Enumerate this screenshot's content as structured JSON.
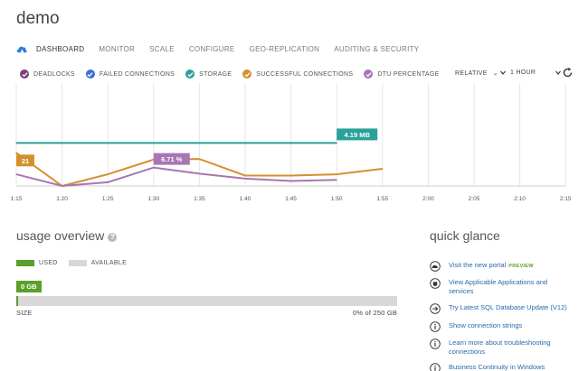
{
  "page": {
    "title": "demo"
  },
  "nav": {
    "items": [
      "DASHBOARD",
      "MONITOR",
      "SCALE",
      "CONFIGURE",
      "GEO-REPLICATION",
      "AUDITING & SECURITY"
    ],
    "active": "DASHBOARD"
  },
  "metrics": [
    {
      "label": "DEADLOCKS",
      "color": "#7d3c7c"
    },
    {
      "label": "FAILED CONNECTIONS",
      "color": "#3a6fd1"
    },
    {
      "label": "STORAGE",
      "color": "#2aa198"
    },
    {
      "label": "SUCCESSFUL CONNECTIONS",
      "color": "#d4902f"
    },
    {
      "label": "DTU PERCENTAGE",
      "color": "#a875b5"
    }
  ],
  "time_controls": {
    "mode": "RELATIVE",
    "range": "1 HOUR"
  },
  "chart_data": {
    "type": "line",
    "x": [
      "1:15",
      "1:20",
      "1:25",
      "1:30",
      "1:35",
      "1:40",
      "1:45",
      "1:50",
      "1:55",
      "2:00",
      "2:05",
      "2:10",
      "2:15"
    ],
    "ylim": [
      0,
      100
    ],
    "series": [
      {
        "name": "STORAGE",
        "color": "#2aa198",
        "values": [
          70,
          70,
          70,
          70,
          70,
          70,
          70,
          70,
          null,
          null,
          null,
          null,
          null
        ],
        "callout": "4.19 MB",
        "callout_index": 7
      },
      {
        "name": "SUCCESSFUL CONNECTIONS",
        "color": "#d4902f",
        "values": [
          54,
          0,
          19,
          43,
          44,
          17,
          17,
          19,
          28,
          null,
          null,
          null,
          null
        ],
        "callout": "21",
        "callout_index": 0
      },
      {
        "name": "DTU PERCENTAGE",
        "color": "#a875b5",
        "values": [
          19,
          0,
          6,
          30,
          20,
          12,
          8,
          10,
          null,
          null,
          null,
          null,
          null
        ],
        "callout": "6.71 %",
        "callout_index": 3
      }
    ]
  },
  "usage": {
    "title": "usage overview",
    "legend_used": "USED",
    "legend_available": "AVAILABLE",
    "used_label": "0 GB",
    "size_label": "SIZE",
    "summary": "0% of 250 GB",
    "used_fraction": 0.004,
    "colors": {
      "used": "#5aa02c",
      "available": "#d8d8d8"
    }
  },
  "quick_glance": {
    "title": "quick glance",
    "items": [
      {
        "icon": "cloud-icon",
        "text": "Visit the new portal",
        "tag": "PREVIEW"
      },
      {
        "icon": "database-icon",
        "text": "View Applicable Applications and services"
      },
      {
        "icon": "arrow-right-icon",
        "text": "Try Latest SQL Database Update (V12)"
      },
      {
        "icon": "info-icon",
        "text": "Show connection strings"
      },
      {
        "icon": "info-icon",
        "text": "Learn more about troubleshooting connections"
      },
      {
        "icon": "info-icon",
        "text": "Business Continuity in Windows"
      }
    ]
  }
}
